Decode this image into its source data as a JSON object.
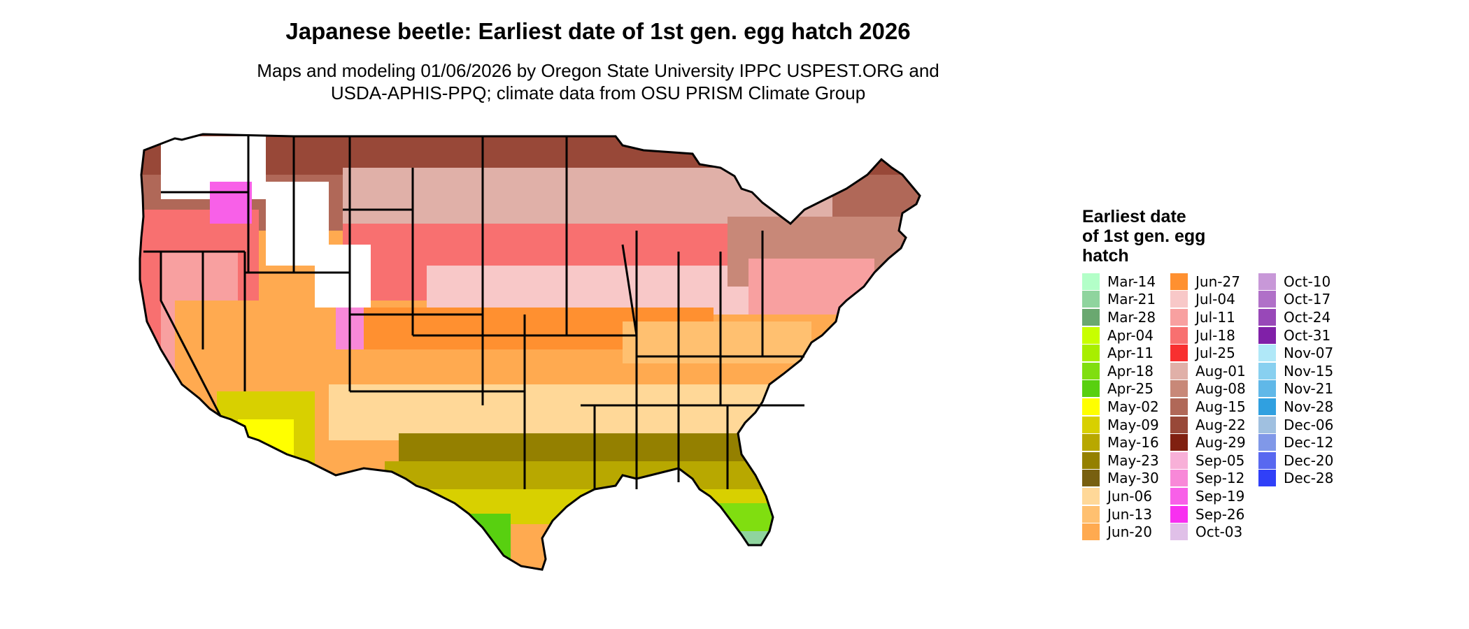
{
  "title": "Japanese beetle: Earliest date of 1st gen. egg hatch 2026",
  "subtitle_line1": "Maps and modeling 01/06/2026 by Oregon State University IPPC USPEST.ORG and",
  "subtitle_line2": "USDA-APHIS-PPQ; climate data from OSU PRISM Climate Group",
  "legend": {
    "title_lines": [
      "Earliest date",
      "of 1st gen. egg",
      "hatch"
    ],
    "items": [
      {
        "label": "Mar-14",
        "color": "#b3ffc8"
      },
      {
        "label": "Mar-21",
        "color": "#8fd49e"
      },
      {
        "label": "Mar-28",
        "color": "#6aa870"
      },
      {
        "label": "Apr-04",
        "color": "#c8ff00"
      },
      {
        "label": "Apr-11",
        "color": "#a8ee00"
      },
      {
        "label": "Apr-18",
        "color": "#80de10"
      },
      {
        "label": "Apr-25",
        "color": "#58d010"
      },
      {
        "label": "May-02",
        "color": "#ffff00"
      },
      {
        "label": "May-09",
        "color": "#d8d000"
      },
      {
        "label": "May-16",
        "color": "#b8a800"
      },
      {
        "label": "May-23",
        "color": "#948000"
      },
      {
        "label": "May-30",
        "color": "#786010"
      },
      {
        "label": "Jun-06",
        "color": "#ffd898"
      },
      {
        "label": "Jun-13",
        "color": "#ffc070"
      },
      {
        "label": "Jun-20",
        "color": "#ffaa50"
      },
      {
        "label": "Jun-27",
        "color": "#ff9030"
      },
      {
        "label": "Jul-04",
        "color": "#f8c8c8"
      },
      {
        "label": "Jul-11",
        "color": "#f8a0a0"
      },
      {
        "label": "Jul-18",
        "color": "#f87070"
      },
      {
        "label": "Jul-25",
        "color": "#f83030"
      },
      {
        "label": "Aug-01",
        "color": "#e0b0a8"
      },
      {
        "label": "Aug-08",
        "color": "#c88878"
      },
      {
        "label": "Aug-15",
        "color": "#b06858"
      },
      {
        "label": "Aug-22",
        "color": "#984838"
      },
      {
        "label": "Aug-29",
        "color": "#802010"
      },
      {
        "label": "Sep-05",
        "color": "#f8b0d8"
      },
      {
        "label": "Sep-12",
        "color": "#f888d8"
      },
      {
        "label": "Sep-19",
        "color": "#f860e8"
      },
      {
        "label": "Sep-26",
        "color": "#f830f0"
      },
      {
        "label": "Oct-03",
        "color": "#e0c0e8"
      },
      {
        "label": "Oct-10",
        "color": "#c898d8"
      },
      {
        "label": "Oct-17",
        "color": "#b070c8"
      },
      {
        "label": "Oct-24",
        "color": "#9848b8"
      },
      {
        "label": "Oct-31",
        "color": "#8020a8"
      },
      {
        "label": "Nov-07",
        "color": "#b0e8f8"
      },
      {
        "label": "Nov-15",
        "color": "#88d0f0"
      },
      {
        "label": "Nov-21",
        "color": "#60b8e8"
      },
      {
        "label": "Nov-28",
        "color": "#30a0e0"
      },
      {
        "label": "Dec-06",
        "color": "#a0c0e0"
      },
      {
        "label": "Dec-12",
        "color": "#8098e8"
      },
      {
        "label": "Dec-20",
        "color": "#5868f0"
      },
      {
        "label": "Dec-28",
        "color": "#3040f8"
      }
    ]
  }
}
